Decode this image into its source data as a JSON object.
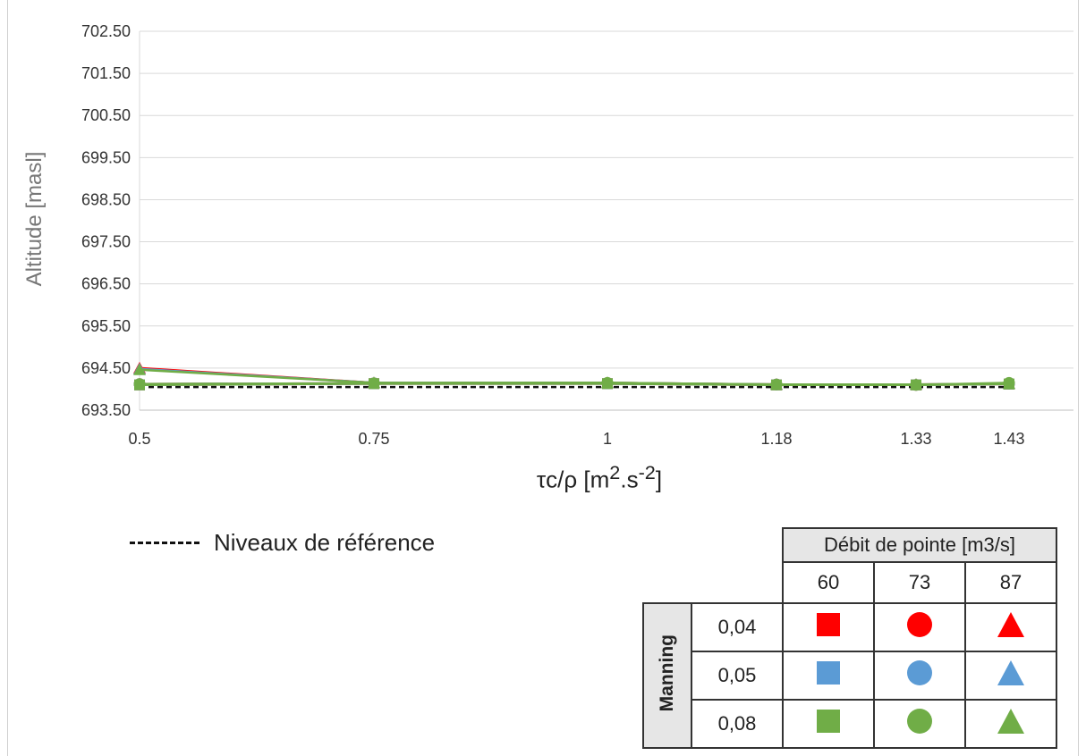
{
  "chart_data": {
    "type": "line",
    "xlabel_main": "τc/ρ [m",
    "xlabel_sup1": "2",
    "xlabel_mid": ".s",
    "xlabel_sup2": "-2",
    "xlabel_end": "]",
    "ylabel": "Altitude [masl]",
    "categories": [
      "0.5",
      "0.75",
      "1",
      "1.18",
      "1.33",
      "1.43"
    ],
    "x": [
      0.5,
      0.75,
      1,
      1.18,
      1.33,
      1.43
    ],
    "ylim": [
      693.5,
      702.5
    ],
    "yticks": [
      "693.50",
      "694.50",
      "695.50",
      "696.50",
      "697.50",
      "698.50",
      "699.50",
      "700.50",
      "701.50",
      "702.50"
    ],
    "grid": true,
    "reference": {
      "name": "Niveaux de référence",
      "values": [
        694.05,
        694.05,
        694.05,
        694.05,
        694.05,
        694.05
      ],
      "color": "#111111"
    },
    "series": [
      {
        "manning": "0,04",
        "debit": "60",
        "color": "#ff0000",
        "marker": "square",
        "values": [
          694.1,
          694.13,
          694.13,
          694.1,
          694.1,
          694.12
        ]
      },
      {
        "manning": "0,04",
        "debit": "73",
        "color": "#ff0000",
        "marker": "circle",
        "values": [
          694.12,
          694.14,
          694.14,
          694.11,
          694.1,
          694.13
        ]
      },
      {
        "manning": "0,04",
        "debit": "87",
        "color": "#ff0000",
        "marker": "triangle",
        "values": [
          694.5,
          694.15,
          694.15,
          694.11,
          694.11,
          694.13
        ]
      },
      {
        "manning": "0,05",
        "debit": "60",
        "color": "#5b9bd5",
        "marker": "square",
        "values": [
          694.1,
          694.13,
          694.13,
          694.1,
          694.1,
          694.12
        ]
      },
      {
        "manning": "0,05",
        "debit": "73",
        "color": "#5b9bd5",
        "marker": "circle",
        "values": [
          694.12,
          694.14,
          694.14,
          694.11,
          694.1,
          694.13
        ]
      },
      {
        "manning": "0,05",
        "debit": "87",
        "color": "#5b9bd5",
        "marker": "triangle",
        "values": [
          694.48,
          694.15,
          694.15,
          694.11,
          694.11,
          694.13
        ]
      },
      {
        "manning": "0,08",
        "debit": "60",
        "color": "#70ad47",
        "marker": "square",
        "values": [
          694.1,
          694.13,
          694.13,
          694.1,
          694.1,
          694.12
        ]
      },
      {
        "manning": "0,08",
        "debit": "73",
        "color": "#70ad47",
        "marker": "circle",
        "values": [
          694.12,
          694.14,
          694.15,
          694.11,
          694.1,
          694.15
        ]
      },
      {
        "manning": "0,08",
        "debit": "87",
        "color": "#70ad47",
        "marker": "triangle",
        "values": [
          694.46,
          694.15,
          694.15,
          694.11,
          694.11,
          694.13
        ]
      }
    ]
  },
  "legend": {
    "reference_label": "Niveaux de référence",
    "table_header": "Débit de pointe [m3/s]",
    "debits": [
      "60",
      "73",
      "87"
    ],
    "manning_label": "Manning",
    "mannings": [
      "0,04",
      "0,05",
      "0,08"
    ],
    "colors": [
      "#ff0000",
      "#5b9bd5",
      "#70ad47"
    ],
    "markers": [
      "square",
      "circle",
      "triangle"
    ]
  }
}
